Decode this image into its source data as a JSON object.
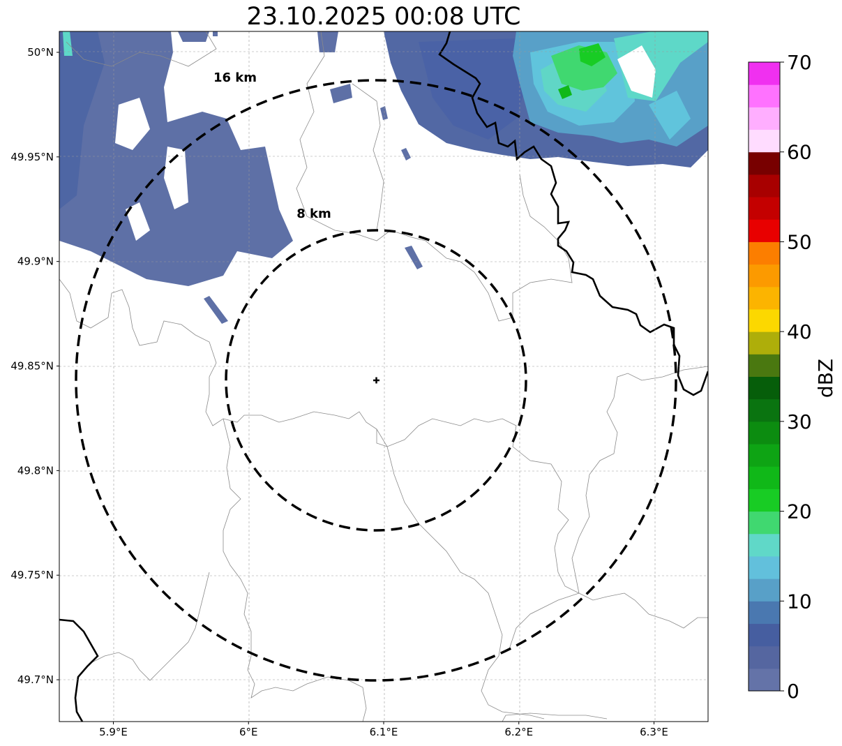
{
  "title": "23.10.2025 00:08 UTC",
  "map": {
    "lon_range": [
      5.86,
      6.34
    ],
    "lat_range": [
      49.68,
      50.01
    ],
    "center": {
      "lon": 6.096,
      "lat": 49.843
    },
    "rings": [
      {
        "label": "8 km",
        "radius_km": 8
      },
      {
        "label": "16 km",
        "radius_km": 16
      }
    ],
    "x_ticks": [
      {
        "value": 5.9,
        "label": "5.9°E"
      },
      {
        "value": 6.0,
        "label": "6°E"
      },
      {
        "value": 6.1,
        "label": "6.1°E"
      },
      {
        "value": 6.2,
        "label": "6.2°E"
      },
      {
        "value": 6.3,
        "label": "6.3°E"
      }
    ],
    "y_ticks": [
      {
        "value": 50.0,
        "label": "50°N"
      },
      {
        "value": 49.95,
        "label": "49.95°N"
      },
      {
        "value": 49.9,
        "label": "49.9°N"
      },
      {
        "value": 49.85,
        "label": "49.85°N"
      },
      {
        "value": 49.8,
        "label": "49.8°N"
      },
      {
        "value": 49.75,
        "label": "49.75°N"
      },
      {
        "value": 49.7,
        "label": "49.7°N"
      }
    ],
    "gridlines": true
  },
  "colorbar": {
    "label": "dBZ",
    "min": 0,
    "max": 70,
    "step": 2.5,
    "tick_values": [
      0,
      10,
      20,
      30,
      40,
      50,
      60,
      70
    ],
    "colors": [
      "#6473a8",
      "#5566a0",
      "#465ea0",
      "#4a78b0",
      "#58a0c8",
      "#62c0dc",
      "#60d8c8",
      "#40d870",
      "#18cc24",
      "#10b818",
      "#0ea414",
      "#0c8c10",
      "#0a7410",
      "#065e0a",
      "#4a7810",
      "#aeae0a",
      "#fcd800",
      "#fcb400",
      "#fc9a00",
      "#fc7e00",
      "#e80000",
      "#c40000",
      "#a80000",
      "#780000",
      "#ffdcff",
      "#ffaeff",
      "#ff72ff",
      "#f030f0"
    ]
  }
}
